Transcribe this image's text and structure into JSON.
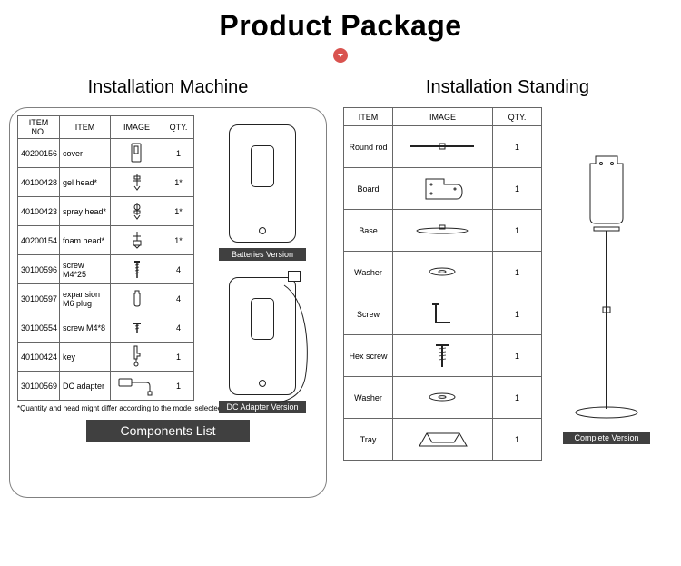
{
  "title": "Product Package",
  "dot_bg": "#d9534f",
  "dot_fg": "#ffffff",
  "left": {
    "subtitle": "Installation Machine",
    "headers": {
      "item_no": "ITEM NO.",
      "item": "ITEM",
      "image": "IMAGE",
      "qty": "QTY."
    },
    "rows": [
      {
        "no": "40200156",
        "item": "cover",
        "icon": "cover",
        "qty": "1"
      },
      {
        "no": "40100428",
        "item": "gel head*",
        "icon": "gelhead",
        "qty": "1*"
      },
      {
        "no": "40100423",
        "item": "spray head*",
        "icon": "sprayhead",
        "qty": "1*"
      },
      {
        "no": "40200154",
        "item": "foam head*",
        "icon": "foamhead",
        "qty": "1*"
      },
      {
        "no": "30100596",
        "item": "screw M4*25",
        "icon": "screw-long",
        "qty": "4"
      },
      {
        "no": "30100597",
        "item": "expansion M6 plug",
        "icon": "plug",
        "qty": "4"
      },
      {
        "no": "30100554",
        "item": "screw M4*8",
        "icon": "screw-short",
        "qty": "4"
      },
      {
        "no": "40100424",
        "item": "key",
        "icon": "key",
        "qty": "1"
      },
      {
        "no": "30100569",
        "item": "DC adapter",
        "icon": "adapter",
        "qty": "1"
      }
    ],
    "note": "*Quantity and head might differ according to the model selected",
    "components_label": "Components List",
    "disp_caption_1": "Batteries Version",
    "disp_caption_2": "DC Adapter Version"
  },
  "right": {
    "subtitle": "Installation Standing",
    "headers": {
      "item": "ITEM",
      "image": "IMAGE",
      "qty": "QTY."
    },
    "rows": [
      {
        "item": "Round rod",
        "icon": "rod",
        "qty": "1"
      },
      {
        "item": "Board",
        "icon": "board",
        "qty": "1"
      },
      {
        "item": "Base",
        "icon": "base",
        "qty": "1"
      },
      {
        "item": "Washer",
        "icon": "washer",
        "qty": "1"
      },
      {
        "item": "Screw",
        "icon": "lscrew",
        "qty": "1"
      },
      {
        "item": "Hex screw",
        "icon": "hexscrew",
        "qty": "1"
      },
      {
        "item": "Washer",
        "icon": "washer",
        "qty": "1"
      },
      {
        "item": "Tray",
        "icon": "tray",
        "qty": "1"
      }
    ],
    "stand_caption": "Complete Version"
  },
  "colors": {
    "label_bg": "#404040",
    "label_fg": "#ffffff",
    "border": "#666666",
    "panel_border": "#808080"
  }
}
